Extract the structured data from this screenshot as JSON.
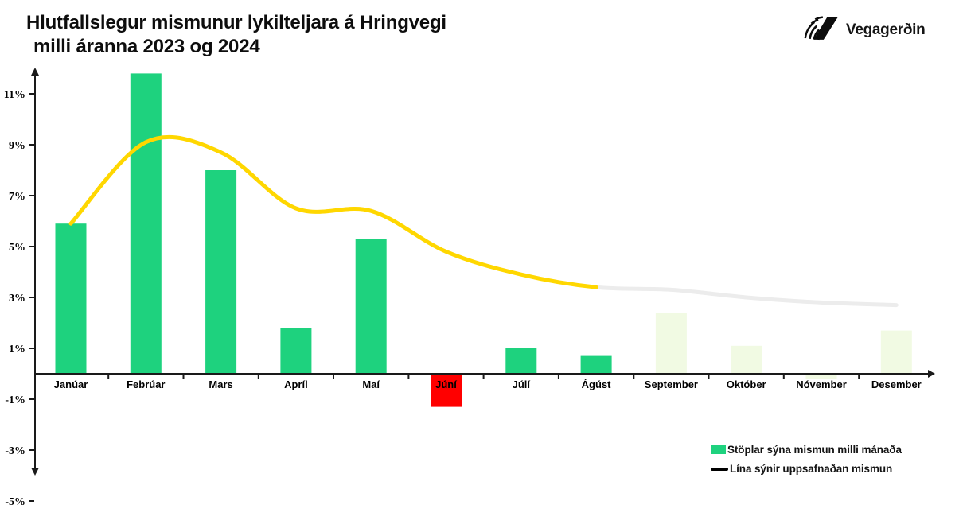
{
  "header": {
    "title_line1": "Hlutfallslegur mismunur lykilteljara á Hringvegi",
    "title_line2": "milli áranna 2023 og 2024",
    "logo_text": "Vegagerðin"
  },
  "legend": {
    "bars_label": "Stöplar sýna mismun milli mánaða",
    "line_label": "Lína sýnir uppsafnaðan mismun"
  },
  "colors": {
    "bar_green": "#1ed27e",
    "bar_red": "#ff0000",
    "bar_projected": "#f1fae3",
    "line_yellow": "#ffd700",
    "line_gray": "#ececec",
    "axis_black": "#1a1a1a",
    "text_black": "#141414"
  },
  "chart_data": {
    "type": "bar+line",
    "title": "Hlutfallslegur mismunur lykilteljara á Hringvegi milli áranna 2023 og 2024",
    "xlabel": "",
    "ylabel": "",
    "grid": false,
    "legend_position": "bottom-right",
    "categories": [
      "Janúar",
      "Febrúar",
      "Mars",
      "Apríl",
      "Maí",
      "Júní",
      "Júlí",
      "Ágúst",
      "September",
      "Október",
      "Nóvember",
      "Desember"
    ],
    "y_ticks": [
      "11%",
      "9%",
      "7%",
      "5%",
      "3%",
      "1%",
      "-1%",
      "-3%",
      "-5%"
    ],
    "y_tick_values": [
      11,
      9,
      7,
      5,
      3,
      1,
      -1,
      -3,
      -5
    ],
    "ylim": [
      -5.8,
      12.5
    ],
    "unit": "%",
    "series": [
      {
        "name": "Stöplar sýna mismun milli mánaða",
        "type": "bar",
        "values": [
          5.9,
          11.8,
          8.0,
          1.8,
          5.3,
          -1.3,
          1.0,
          0.7,
          2.4,
          1.1,
          -0.2,
          1.7
        ],
        "styles": [
          "actual",
          "actual",
          "actual",
          "actual",
          "actual",
          "negative",
          "actual",
          "actual",
          "projected",
          "projected",
          "projected",
          "projected"
        ]
      },
      {
        "name": "Lína sýnir uppsafnaðan mismun",
        "type": "line",
        "values": [
          5.9,
          9.1,
          8.7,
          6.5,
          6.4,
          4.8,
          3.9,
          3.4,
          3.3,
          3.0,
          2.8,
          2.7
        ],
        "actual_through_index": 7,
        "note_styles": [
          "yellow through Ágúst",
          "gray projection Sep-Des"
        ]
      }
    ]
  }
}
